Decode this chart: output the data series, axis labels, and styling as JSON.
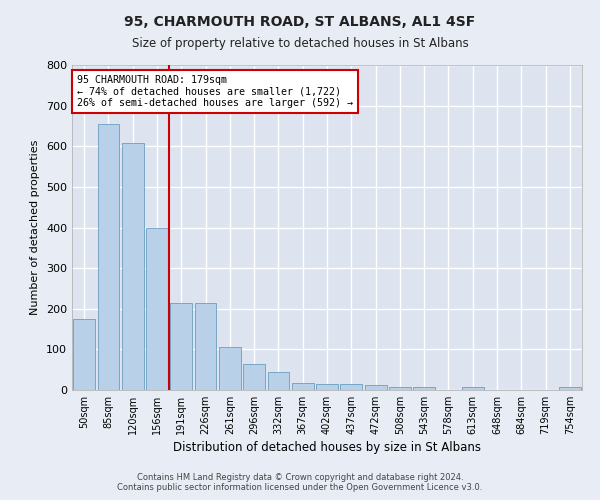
{
  "title1": "95, CHARMOUTH ROAD, ST ALBANS, AL1 4SF",
  "title2": "Size of property relative to detached houses in St Albans",
  "xlabel": "Distribution of detached houses by size in St Albans",
  "ylabel": "Number of detached properties",
  "categories": [
    "50sqm",
    "85sqm",
    "120sqm",
    "156sqm",
    "191sqm",
    "226sqm",
    "261sqm",
    "296sqm",
    "332sqm",
    "367sqm",
    "402sqm",
    "437sqm",
    "472sqm",
    "508sqm",
    "543sqm",
    "578sqm",
    "613sqm",
    "648sqm",
    "684sqm",
    "719sqm",
    "754sqm"
  ],
  "values": [
    175,
    655,
    607,
    400,
    215,
    215,
    107,
    63,
    45,
    18,
    16,
    15,
    13,
    7,
    8,
    0,
    8,
    0,
    0,
    0,
    7
  ],
  "bar_color": "#b8d0e8",
  "bar_edge_color": "#6a9fc0",
  "fig_bg_color": "#e8edf5",
  "axes_bg_color": "#dde4f0",
  "grid_color": "#ffffff",
  "vline_x": 3.5,
  "vline_color": "#cc0000",
  "annotation_line1": "95 CHARMOUTH ROAD: 179sqm",
  "annotation_line2": "← 74% of detached houses are smaller (1,722)",
  "annotation_line3": "26% of semi-detached houses are larger (592) →",
  "annotation_box_color": "#ffffff",
  "annotation_box_edge": "#cc0000",
  "footer1": "Contains HM Land Registry data © Crown copyright and database right 2024.",
  "footer2": "Contains public sector information licensed under the Open Government Licence v3.0.",
  "ylim": [
    0,
    800
  ],
  "yticks": [
    0,
    100,
    200,
    300,
    400,
    500,
    600,
    700,
    800
  ]
}
